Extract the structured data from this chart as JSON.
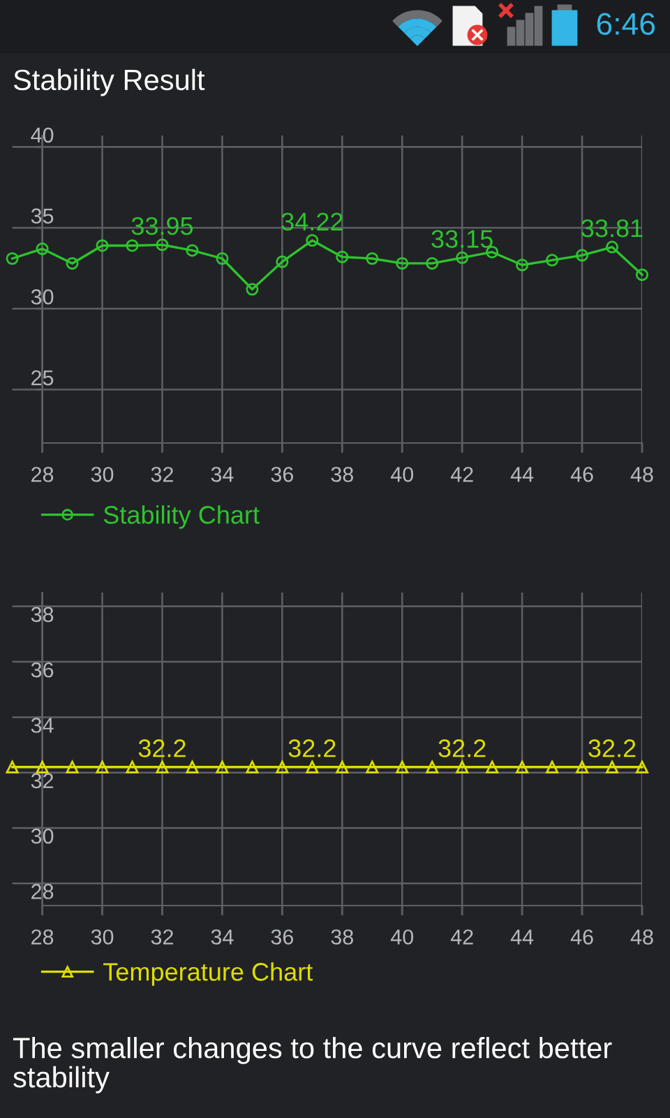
{
  "chart_data": [
    {
      "type": "line",
      "title": "Stability Result",
      "annotations": [
        "6:46"
      ],
      "x": [
        27,
        28,
        29,
        30,
        31,
        32,
        33,
        34,
        35,
        36,
        37,
        38,
        39,
        40,
        41,
        42,
        43,
        44,
        45,
        46,
        47,
        48
      ],
      "xlim": [
        27,
        48
      ],
      "xticks": [
        28,
        30,
        32,
        34,
        36,
        38,
        40,
        42,
        44,
        46,
        48
      ],
      "ylim": [
        21.7,
        40.7
      ],
      "yticks": [
        25,
        30,
        35,
        40
      ],
      "grid": true,
      "legend": "bottom left",
      "marker": "circle",
      "series": [
        {
          "name": "Stability Chart",
          "color": "#2cc52c",
          "values": [
            33.1,
            33.7,
            32.8,
            33.9,
            33.9,
            33.95,
            33.6,
            33.1,
            31.2,
            32.9,
            34.22,
            33.2,
            33.1,
            32.8,
            32.8,
            33.15,
            33.5,
            32.7,
            33.0,
            33.3,
            33.81,
            32.1
          ],
          "value_labels": [
            null,
            null,
            null,
            null,
            null,
            "33.95",
            null,
            null,
            null,
            null,
            "34.22",
            null,
            null,
            null,
            null,
            "33.15",
            null,
            null,
            null,
            null,
            "33.81",
            null
          ]
        }
      ]
    },
    {
      "type": "line",
      "annotations": [
        "The smaller changes to the curve reflect better stability"
      ],
      "x": [
        27,
        28,
        29,
        30,
        31,
        32,
        33,
        34,
        35,
        36,
        37,
        38,
        39,
        40,
        41,
        42,
        43,
        44,
        45,
        46,
        47,
        48
      ],
      "xlim": [
        27,
        48
      ],
      "xticks": [
        28,
        30,
        32,
        34,
        36,
        38,
        40,
        42,
        44,
        46,
        48
      ],
      "ylim": [
        27.2,
        38.5
      ],
      "yticks": [
        28,
        30,
        32,
        34,
        36,
        38
      ],
      "grid": true,
      "legend": "bottom left",
      "marker": "triangle",
      "series": [
        {
          "name": "Temperature Chart",
          "color": "#dede00",
          "values": [
            32.2,
            32.2,
            32.2,
            32.2,
            32.2,
            32.2,
            32.2,
            32.2,
            32.2,
            32.2,
            32.2,
            32.2,
            32.2,
            32.2,
            32.2,
            32.2,
            32.2,
            32.2,
            32.2,
            32.2,
            32.2,
            32.2
          ],
          "value_labels": [
            null,
            null,
            null,
            null,
            null,
            "32.2",
            null,
            null,
            null,
            null,
            "32.2",
            null,
            null,
            null,
            null,
            "32.2",
            null,
            null,
            null,
            null,
            "32.2",
            null
          ]
        }
      ]
    }
  ]
}
